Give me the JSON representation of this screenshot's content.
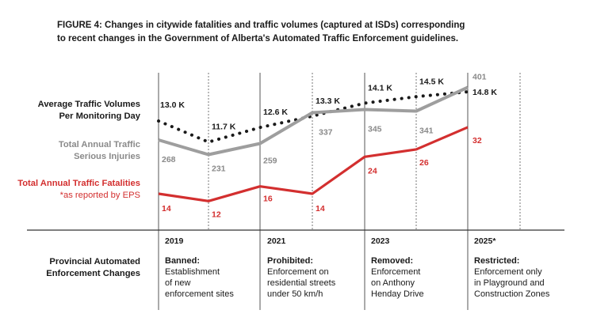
{
  "title": {
    "line1": "FIGURE 4:  Changes in citywide fatalities and traffic volumes (captured at ISDs) corresponding",
    "line2": "to recent changes in the Government of Alberta's Automated Traffic Enforcement guidelines."
  },
  "row_labels": {
    "volume_line1": "Average Traffic Volumes",
    "volume_line2": "Per Monitoring Day",
    "injuries_line1": "Total Annual Traffic",
    "injuries_line2": "Serious Injuries",
    "fatalities_line1": "Total Annual Traffic Fatalities",
    "fatalities_note": "*as reported by EPS",
    "enforcement_line1": "Provincial Automated",
    "enforcement_line2": "Enforcement Changes"
  },
  "colors": {
    "volume": "#1a1a1a",
    "injuries": "#9e9e9e",
    "fatalities": "#d32f2f",
    "injuries_label": "#8a8a8a",
    "grid": "#555555"
  },
  "chart_data": {
    "type": "line",
    "x": [
      "2019a",
      "2019b",
      "2021a",
      "2021b",
      "2023a",
      "2023b",
      "2025a"
    ],
    "series": [
      {
        "name": "Average Traffic Volumes Per Monitoring Day",
        "style": "dotted",
        "values": [
          13.0,
          11.7,
          12.6,
          13.3,
          14.1,
          14.5,
          14.8
        ],
        "labels": [
          "13.0 K",
          "11.7 K",
          "12.6 K",
          "13.3 K",
          "14.1 K",
          "14.5 K",
          "14.8 K"
        ]
      },
      {
        "name": "Total Annual Traffic Serious Injuries",
        "style": "solid",
        "values": [
          268,
          231,
          259,
          337,
          345,
          341,
          401
        ],
        "labels": [
          "268",
          "231",
          "259",
          "337",
          "345",
          "341",
          "401"
        ]
      },
      {
        "name": "Total Annual Traffic Fatalities",
        "style": "solid",
        "values": [
          14,
          12,
          16,
          14,
          24,
          26,
          32
        ],
        "labels": [
          "14",
          "12",
          "16",
          "14",
          "24",
          "26",
          "32"
        ]
      }
    ]
  },
  "columns": [
    {
      "year": "2019",
      "title": "Banned:",
      "desc": [
        "Establishment",
        "of new",
        "enforcement sites"
      ]
    },
    {
      "year": "2021",
      "title": "Prohibited:",
      "desc": [
        "Enforcement on",
        "residential streets",
        "under 50 km/h"
      ]
    },
    {
      "year": "2023",
      "title": "Removed:",
      "desc": [
        "Enforcement",
        "on Anthony",
        "Henday Drive"
      ]
    },
    {
      "year": "2025*",
      "title": "Restricted:",
      "desc": [
        "Enforcement only",
        "in Playground and",
        "Construction Zones"
      ]
    }
  ]
}
